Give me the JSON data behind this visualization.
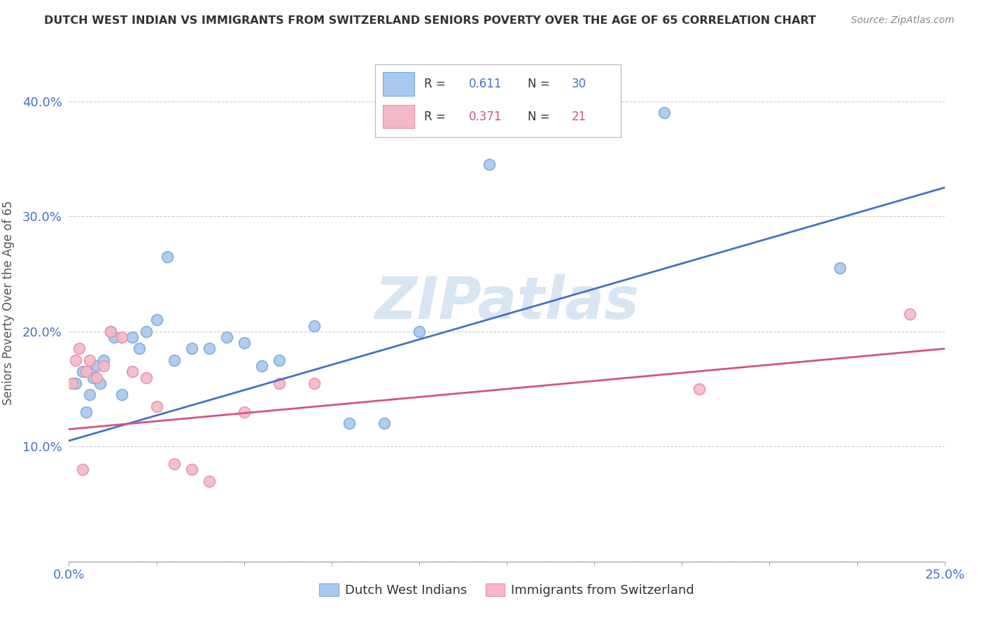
{
  "title": "DUTCH WEST INDIAN VS IMMIGRANTS FROM SWITZERLAND SENIORS POVERTY OVER THE AGE OF 65 CORRELATION CHART",
  "source": "Source: ZipAtlas.com",
  "ylabel": "Seniors Poverty Over the Age of 65",
  "xlim": [
    0.0,
    0.25
  ],
  "ylim": [
    0.0,
    0.45
  ],
  "blue_r": 0.611,
  "blue_n": 30,
  "pink_r": 0.371,
  "pink_n": 21,
  "blue_scatter_x": [
    0.002,
    0.004,
    0.005,
    0.006,
    0.007,
    0.008,
    0.009,
    0.01,
    0.012,
    0.013,
    0.015,
    0.018,
    0.02,
    0.022,
    0.025,
    0.028,
    0.03,
    0.035,
    0.04,
    0.045,
    0.05,
    0.055,
    0.06,
    0.07,
    0.08,
    0.09,
    0.1,
    0.12,
    0.17,
    0.22
  ],
  "blue_scatter_y": [
    0.155,
    0.165,
    0.13,
    0.145,
    0.16,
    0.17,
    0.155,
    0.175,
    0.2,
    0.195,
    0.145,
    0.195,
    0.185,
    0.2,
    0.21,
    0.265,
    0.175,
    0.185,
    0.185,
    0.195,
    0.19,
    0.17,
    0.175,
    0.205,
    0.12,
    0.12,
    0.2,
    0.345,
    0.39,
    0.255
  ],
  "pink_scatter_x": [
    0.001,
    0.002,
    0.003,
    0.004,
    0.005,
    0.006,
    0.008,
    0.01,
    0.012,
    0.015,
    0.018,
    0.022,
    0.025,
    0.03,
    0.035,
    0.04,
    0.05,
    0.06,
    0.07,
    0.18,
    0.24
  ],
  "pink_scatter_y": [
    0.155,
    0.175,
    0.185,
    0.08,
    0.165,
    0.175,
    0.16,
    0.17,
    0.2,
    0.195,
    0.165,
    0.16,
    0.135,
    0.085,
    0.08,
    0.07,
    0.13,
    0.155,
    0.155,
    0.15,
    0.215
  ],
  "blue_line_x": [
    0.0,
    0.25
  ],
  "blue_line_y": [
    0.105,
    0.325
  ],
  "pink_line_x": [
    0.0,
    0.25
  ],
  "pink_line_y": [
    0.115,
    0.185
  ],
  "blue_color": "#A8C8EE",
  "pink_color": "#F4B8C8",
  "blue_edge_color": "#7BAAD8",
  "pink_edge_color": "#E890A8",
  "blue_line_color": "#4472C4",
  "pink_line_color": "#D4547A",
  "bg_color": "#FFFFFF",
  "watermark": "ZIPatlas",
  "watermark_color": "#C8DCEE",
  "grid_color": "#CCCCCC",
  "title_color": "#333333",
  "source_color": "#888888",
  "tick_color": "#4472C4",
  "ylabel_color": "#555555"
}
